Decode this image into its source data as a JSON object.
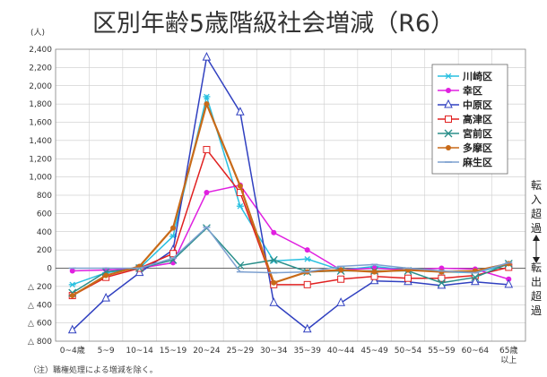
{
  "chart_data": {
    "type": "line",
    "title": "区別年齢5歳階級社会増減（R6）",
    "unit_label": "(人)",
    "categories": [
      "0~4歳",
      "5~9",
      "10~14",
      "15~19",
      "20~24",
      "25~29",
      "30~34",
      "35~39",
      "40~44",
      "45~49",
      "50~54",
      "55~59",
      "60~64",
      "65歳"
    ],
    "category_suffix": {
      "last": "以上"
    },
    "ylim": [
      -800,
      2400
    ],
    "yticks": [
      -800,
      -600,
      -400,
      -200,
      0,
      200,
      400,
      600,
      800,
      1000,
      1200,
      1400,
      1600,
      1800,
      2000,
      2200,
      2400
    ],
    "ytick_labels": [
      "△ 800",
      "△ 600",
      "△ 400",
      "△ 200",
      "0",
      "200",
      "400",
      "600",
      "800",
      "1,000",
      "1,200",
      "1,400",
      "1,600",
      "1,800",
      "2,000",
      "2,200",
      "2,400"
    ],
    "grid": true,
    "legend_position": "top-right",
    "series": [
      {
        "name": "川崎区",
        "color": "#29c0e0",
        "marker": "asterisk",
        "values": [
          -180,
          -50,
          0,
          350,
          1880,
          680,
          80,
          100,
          -20,
          20,
          -20,
          -40,
          -50,
          40
        ]
      },
      {
        "name": "幸区",
        "color": "#e020e0",
        "marker": "dot",
        "values": [
          -30,
          -20,
          0,
          60,
          830,
          910,
          390,
          200,
          -20,
          0,
          -20,
          0,
          -10,
          -120
        ]
      },
      {
        "name": "中原区",
        "color": "#3040c0",
        "marker": "triangle",
        "values": [
          -680,
          -330,
          -50,
          200,
          2310,
          1710,
          -380,
          -670,
          -380,
          -140,
          -150,
          -190,
          -150,
          -180
        ]
      },
      {
        "name": "高津区",
        "color": "#e02020",
        "marker": "square",
        "values": [
          -300,
          -100,
          0,
          160,
          1300,
          830,
          -180,
          -180,
          -120,
          -90,
          -110,
          -110,
          -80,
          10
        ]
      },
      {
        "name": "宮前区",
        "color": "#2a8f8a",
        "marker": "x",
        "values": [
          -270,
          -40,
          0,
          90,
          440,
          30,
          90,
          -40,
          -30,
          -30,
          -30,
          -160,
          -100,
          50
        ]
      },
      {
        "name": "多摩区",
        "color": "#c86a18",
        "marker": "dot",
        "values": [
          -300,
          -80,
          20,
          440,
          1800,
          900,
          -160,
          -40,
          -20,
          -40,
          -20,
          -40,
          -30,
          50
        ]
      },
      {
        "name": "麻生区",
        "color": "#7da0d0",
        "marker": "dash",
        "values": [
          0,
          0,
          0,
          110,
          450,
          -40,
          -50,
          -40,
          20,
          40,
          0,
          -30,
          -50,
          60
        ]
      }
    ],
    "right_label_top": "転入超過",
    "right_label_bottom": "転出超過",
    "note": "（注）職権処理による増減を除く。"
  }
}
